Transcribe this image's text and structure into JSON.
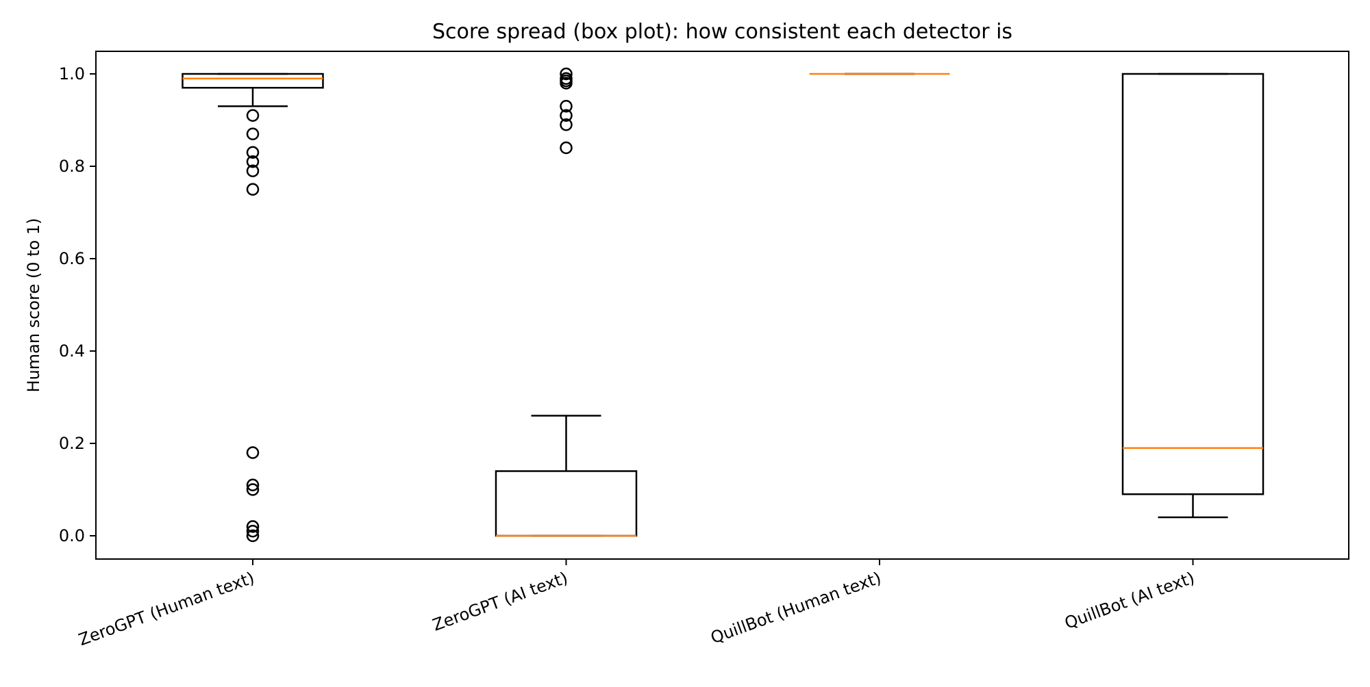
{
  "chart_data": {
    "type": "box",
    "title": "Score spread (box plot): how consistent each detector is",
    "xlabel": "",
    "ylabel": "Human score (0 to 1)",
    "ylim": [
      -0.05,
      1.05
    ],
    "yticks": [
      0.0,
      0.2,
      0.4,
      0.6,
      0.8,
      1.0
    ],
    "ytick_labels": [
      "0.0",
      "0.2",
      "0.4",
      "0.6",
      "0.8",
      "1.0"
    ],
    "grid": false,
    "legend": null,
    "categories": [
      "ZeroGPT (Human text)",
      "ZeroGPT (AI text)",
      "QuillBot (Human text)",
      "QuillBot (AI text)"
    ],
    "series": [
      {
        "name": "ZeroGPT (Human text)",
        "whisker_low": 0.93,
        "q1": 0.97,
        "median": 0.99,
        "q3": 1.0,
        "whisker_high": 1.0,
        "outliers": [
          0.91,
          0.87,
          0.83,
          0.81,
          0.79,
          0.75,
          0.18,
          0.11,
          0.1,
          0.02,
          0.01,
          0.0
        ]
      },
      {
        "name": "ZeroGPT (AI text)",
        "whisker_low": 0.0,
        "q1": 0.0,
        "median": 0.0,
        "q3": 0.14,
        "whisker_high": 0.26,
        "outliers": [
          1.0,
          0.99,
          0.985,
          0.98,
          0.93,
          0.91,
          0.89,
          0.84
        ]
      },
      {
        "name": "QuillBot (Human text)",
        "whisker_low": 1.0,
        "q1": 1.0,
        "median": 1.0,
        "q3": 1.0,
        "whisker_high": 1.0,
        "outliers": []
      },
      {
        "name": "QuillBot (AI text)",
        "whisker_low": 0.04,
        "q1": 0.09,
        "median": 0.19,
        "q3": 1.0,
        "whisker_high": 1.0,
        "outliers": []
      }
    ],
    "colors": {
      "box": "#000000",
      "median": "#ff7f0e",
      "flier": "#000000"
    }
  }
}
